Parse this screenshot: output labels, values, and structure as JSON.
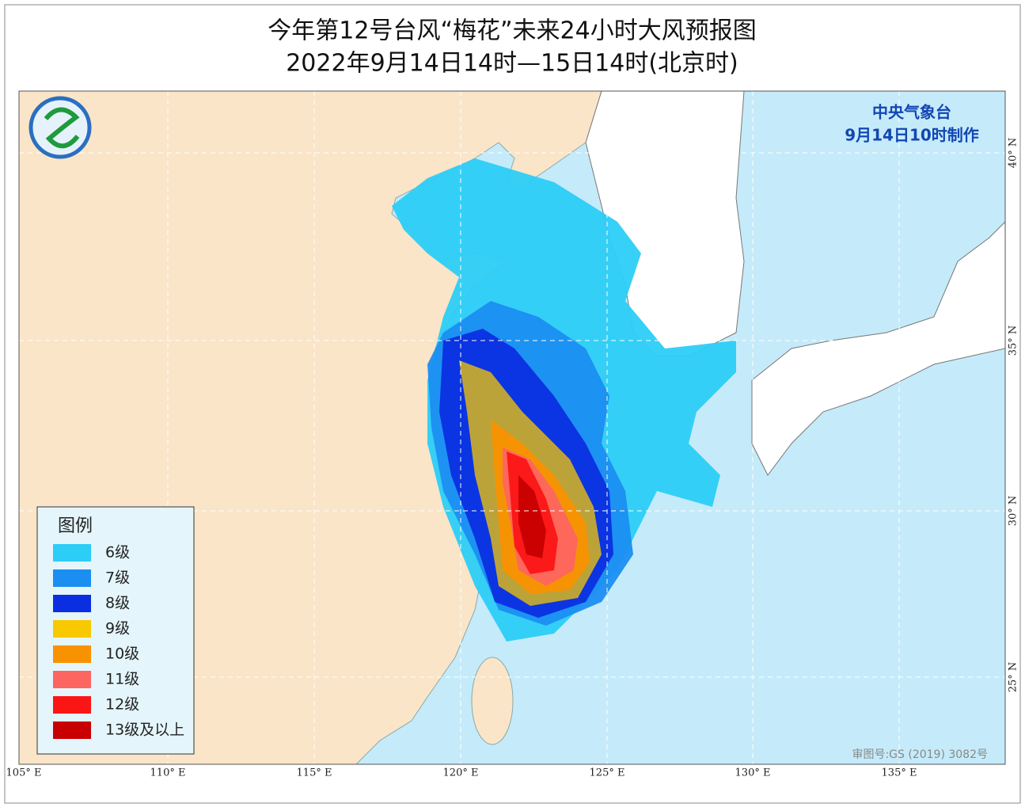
{
  "header": {
    "title": "今年第12号台风“梅花”未来24小时大风预报图",
    "subtitle": "2022年9月14日14时—15日14时(北京时)"
  },
  "issuer": {
    "agency": "中央气象台",
    "issued": "9月14日10时制作"
  },
  "legend": {
    "title": "图例",
    "items": [
      {
        "label": "6级",
        "color": "#2ccdf7"
      },
      {
        "label": "7级",
        "color": "#1b8ef2"
      },
      {
        "label": "8级",
        "color": "#0b2fe0"
      },
      {
        "label": "9级",
        "color": "#f8c800"
      },
      {
        "label": "10级",
        "color": "#f99200"
      },
      {
        "label": "11级",
        "color": "#fd6560"
      },
      {
        "label": "12级",
        "color": "#fb1616"
      },
      {
        "label": "13级及以上",
        "color": "#c80000"
      }
    ]
  },
  "axes": {
    "longitude": [
      "105° E",
      "110° E",
      "115° E",
      "120° E",
      "125° E",
      "130° E",
      "135° E"
    ],
    "latitude": [
      "40° N",
      "35° N",
      "30° N",
      "25° N"
    ]
  },
  "footer": {
    "review": "审图号:GS (2019) 3082号"
  }
}
